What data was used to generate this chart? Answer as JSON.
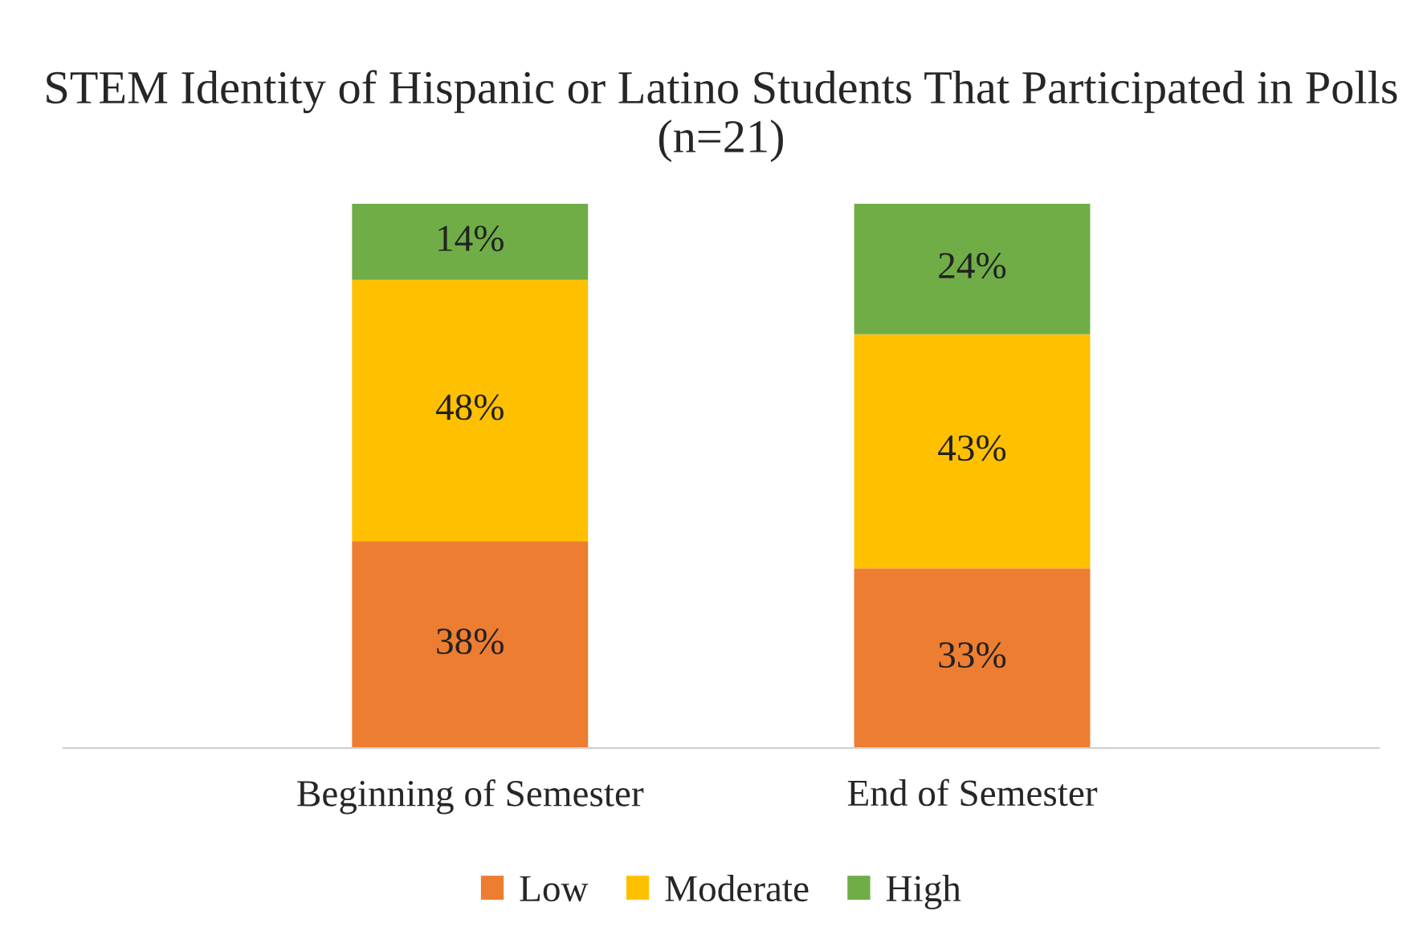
{
  "chart_data": {
    "type": "bar",
    "stacked": true,
    "title": "STEM Identity of Hispanic or Latino Students That Participated in Polls (n=21)",
    "categories": [
      "Beginning of Semester",
      "End of Semester"
    ],
    "series": [
      {
        "name": "Low",
        "color": "#ed7d31",
        "values": [
          38,
          33
        ],
        "value_labels": [
          "38%",
          "33%"
        ]
      },
      {
        "name": "Moderate",
        "color": "#ffc000",
        "values": [
          48,
          43
        ],
        "value_labels": [
          "48%",
          "43%"
        ]
      },
      {
        "name": "High",
        "color": "#70ad47",
        "values": [
          14,
          24
        ],
        "value_labels": [
          "14%",
          "24%"
        ]
      }
    ],
    "legend": "bottom",
    "grid": false
  }
}
